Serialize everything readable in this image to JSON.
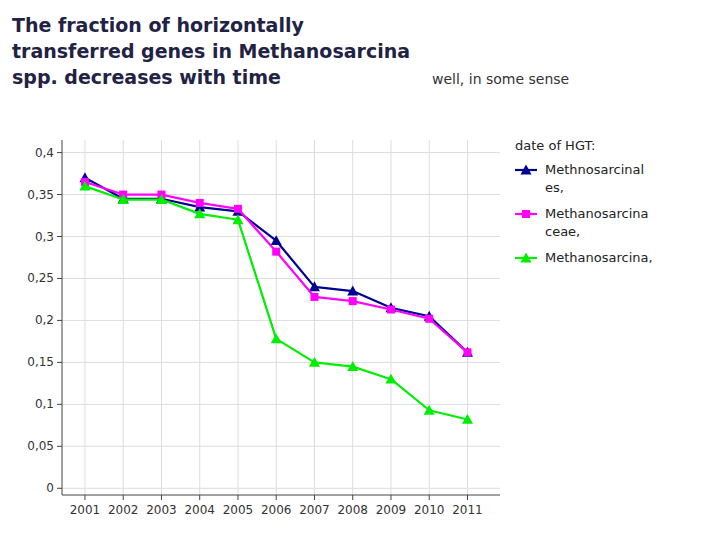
{
  "chart_data": {
    "type": "line",
    "title": "The fraction of horizontally\ntransferred genes in Methanosarcina\nspp. decreases with time",
    "subtitle": "well, in some sense",
    "annotations": [
      "date of HGT:"
    ],
    "x": [
      2001,
      2002,
      2003,
      2004,
      2005,
      2006,
      2007,
      2008,
      2009,
      2010,
      2011
    ],
    "series": [
      {
        "name": "Methnosarcinal\nes,",
        "color": "#000090",
        "marker": "triangle",
        "values": [
          0.37,
          0.345,
          0.345,
          0.335,
          0.33,
          0.295,
          0.24,
          0.235,
          0.215,
          0.205,
          0.162
        ]
      },
      {
        "name": "Methanosarcina\nceae,",
        "color": "#FF00FF",
        "marker": "square",
        "values": [
          0.365,
          0.35,
          0.35,
          0.34,
          0.333,
          0.282,
          0.228,
          0.223,
          0.213,
          0.202,
          0.162
        ]
      },
      {
        "name": "Methanosarcina,",
        "color": "#00EE00",
        "marker": "triangle",
        "values": [
          0.36,
          0.344,
          0.344,
          0.327,
          0.32,
          0.178,
          0.15,
          0.145,
          0.13,
          0.093,
          0.082
        ]
      }
    ],
    "xlim": [
      2000.4,
      2011.85
    ],
    "xticks": [
      2001,
      2002,
      2003,
      2004,
      2005,
      2006,
      2007,
      2008,
      2009,
      2010,
      2011
    ],
    "ylim": [
      -0.008,
      0.415
    ],
    "yticks": [
      0,
      {
        "value": 0.05,
        "label": "0,05"
      },
      {
        "value": 0.1,
        "label": "0,1"
      },
      {
        "value": 0.15,
        "label": "0,15"
      },
      {
        "value": 0.2,
        "label": "0,2"
      },
      {
        "value": 0.25,
        "label": "0,25"
      },
      {
        "value": 0.3,
        "label": "0,3"
      },
      {
        "value": 0.35,
        "label": "0,35"
      },
      {
        "value": 0.4,
        "label": "0,4"
      }
    ],
    "grid": true
  }
}
